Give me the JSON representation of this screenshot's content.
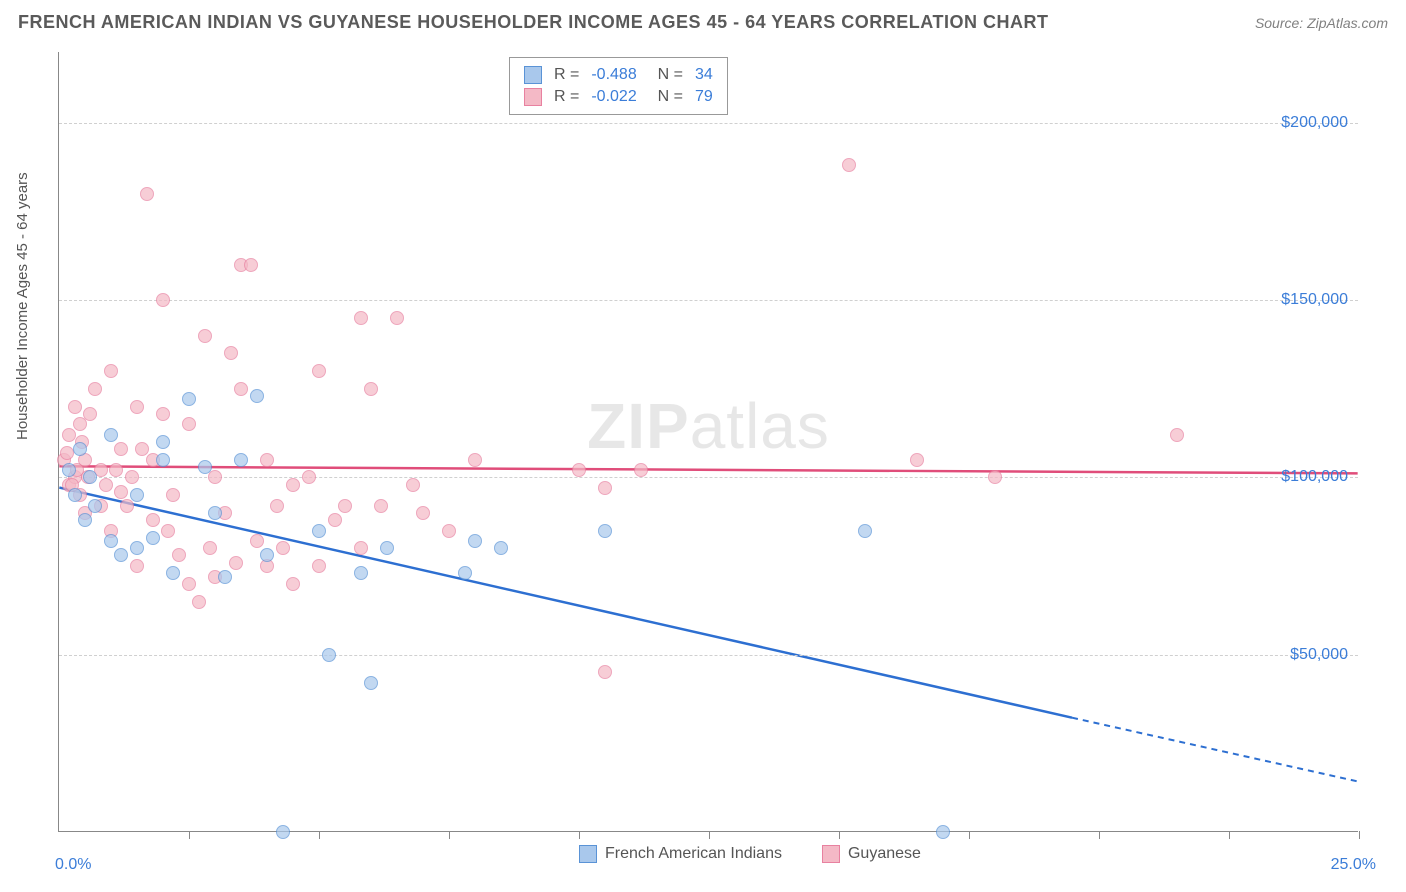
{
  "header": {
    "title": "FRENCH AMERICAN INDIAN VS GUYANESE HOUSEHOLDER INCOME AGES 45 - 64 YEARS CORRELATION CHART",
    "source": "Source: ZipAtlas.com"
  },
  "chart": {
    "type": "scatter",
    "ylabel": "Householder Income Ages 45 - 64 years",
    "xlim": [
      0,
      25
    ],
    "ylim": [
      0,
      220000
    ],
    "x_min_label": "0.0%",
    "x_max_label": "25.0%",
    "y_ticks": [
      50000,
      100000,
      150000,
      200000
    ],
    "y_tick_labels": [
      "$50,000",
      "$100,000",
      "$150,000",
      "$200,000"
    ],
    "x_tick_positions": [
      2.5,
      5,
      7.5,
      10,
      12.5,
      15,
      17.5,
      20,
      22.5,
      25
    ],
    "grid_color": "#d0d0d0",
    "background_color": "#ffffff",
    "watermark": "ZIPatlas",
    "marker_size": 14,
    "series": [
      {
        "name": "French American Indians",
        "fill": "#a9c8ec",
        "stroke": "#5a93d6",
        "opacity": 0.7,
        "r_value": "-0.488",
        "n_value": "34",
        "trend": {
          "x1": 0,
          "y1": 97000,
          "x2": 19.5,
          "y2": 32000,
          "x2_dash": 25,
          "y2_dash": 14000,
          "color": "#2d6fd1"
        },
        "points": [
          [
            0.2,
            102000
          ],
          [
            0.3,
            95000
          ],
          [
            0.4,
            108000
          ],
          [
            0.5,
            88000
          ],
          [
            0.7,
            92000
          ],
          [
            1.0,
            112000
          ],
          [
            1.0,
            82000
          ],
          [
            1.2,
            78000
          ],
          [
            1.5,
            95000
          ],
          [
            1.5,
            80000
          ],
          [
            1.8,
            83000
          ],
          [
            2.0,
            105000
          ],
          [
            2.2,
            73000
          ],
          [
            2.5,
            122000
          ],
          [
            2.8,
            103000
          ],
          [
            3.0,
            90000
          ],
          [
            3.2,
            72000
          ],
          [
            3.5,
            105000
          ],
          [
            4.0,
            78000
          ],
          [
            4.3,
            0
          ],
          [
            5.0,
            85000
          ],
          [
            5.2,
            50000
          ],
          [
            5.8,
            73000
          ],
          [
            6.0,
            42000
          ],
          [
            6.3,
            80000
          ],
          [
            7.8,
            73000
          ],
          [
            8.0,
            82000
          ],
          [
            8.5,
            80000
          ],
          [
            10.5,
            85000
          ],
          [
            15.5,
            85000
          ],
          [
            17.0,
            0
          ],
          [
            3.8,
            123000
          ],
          [
            2.0,
            110000
          ],
          [
            0.6,
            100000
          ]
        ]
      },
      {
        "name": "Guyanese",
        "fill": "#f4b9c6",
        "stroke": "#e881a0",
        "opacity": 0.7,
        "r_value": "-0.022",
        "n_value": "79",
        "trend": {
          "x1": 0,
          "y1": 103000,
          "x2": 25,
          "y2": 101000,
          "color": "#e04d7a"
        },
        "points": [
          [
            0.1,
            105000
          ],
          [
            0.2,
            112000
          ],
          [
            0.2,
            98000
          ],
          [
            0.3,
            120000
          ],
          [
            0.3,
            100000
          ],
          [
            0.4,
            95000
          ],
          [
            0.4,
            115000
          ],
          [
            0.5,
            105000
          ],
          [
            0.5,
            90000
          ],
          [
            0.6,
            118000
          ],
          [
            0.7,
            125000
          ],
          [
            0.8,
            102000
          ],
          [
            0.8,
            92000
          ],
          [
            1.0,
            130000
          ],
          [
            1.0,
            85000
          ],
          [
            1.2,
            108000
          ],
          [
            1.2,
            96000
          ],
          [
            1.4,
            100000
          ],
          [
            1.5,
            120000
          ],
          [
            1.5,
            75000
          ],
          [
            1.7,
            180000
          ],
          [
            1.8,
            105000
          ],
          [
            1.8,
            88000
          ],
          [
            2.0,
            118000
          ],
          [
            2.0,
            150000
          ],
          [
            2.2,
            95000
          ],
          [
            2.3,
            78000
          ],
          [
            2.5,
            70000
          ],
          [
            2.5,
            115000
          ],
          [
            2.7,
            65000
          ],
          [
            2.8,
            140000
          ],
          [
            3.0,
            100000
          ],
          [
            3.0,
            72000
          ],
          [
            3.2,
            90000
          ],
          [
            3.3,
            135000
          ],
          [
            3.5,
            125000
          ],
          [
            3.5,
            160000
          ],
          [
            3.7,
            160000
          ],
          [
            3.8,
            82000
          ],
          [
            4.0,
            105000
          ],
          [
            4.0,
            75000
          ],
          [
            4.2,
            92000
          ],
          [
            4.5,
            98000
          ],
          [
            4.5,
            70000
          ],
          [
            4.8,
            100000
          ],
          [
            5.0,
            130000
          ],
          [
            5.0,
            75000
          ],
          [
            5.3,
            88000
          ],
          [
            5.5,
            92000
          ],
          [
            5.8,
            145000
          ],
          [
            5.8,
            80000
          ],
          [
            6.0,
            125000
          ],
          [
            6.2,
            92000
          ],
          [
            6.5,
            145000
          ],
          [
            6.8,
            98000
          ],
          [
            7.0,
            90000
          ],
          [
            7.5,
            85000
          ],
          [
            8.0,
            105000
          ],
          [
            10.0,
            102000
          ],
          [
            10.5,
            97000
          ],
          [
            10.5,
            45000
          ],
          [
            11.2,
            102000
          ],
          [
            15.2,
            188000
          ],
          [
            16.5,
            105000
          ],
          [
            18.0,
            100000
          ],
          [
            21.5,
            112000
          ],
          [
            0.15,
            107000
          ],
          [
            0.25,
            98000
          ],
          [
            0.35,
            102000
          ],
          [
            0.45,
            110000
          ],
          [
            0.55,
            100000
          ],
          [
            0.9,
            98000
          ],
          [
            1.1,
            102000
          ],
          [
            1.3,
            92000
          ],
          [
            1.6,
            108000
          ],
          [
            2.1,
            85000
          ],
          [
            2.9,
            80000
          ],
          [
            3.4,
            76000
          ],
          [
            4.3,
            80000
          ]
        ]
      }
    ],
    "legend": {
      "series1_label": "French American Indians",
      "series2_label": "Guyanese"
    }
  }
}
